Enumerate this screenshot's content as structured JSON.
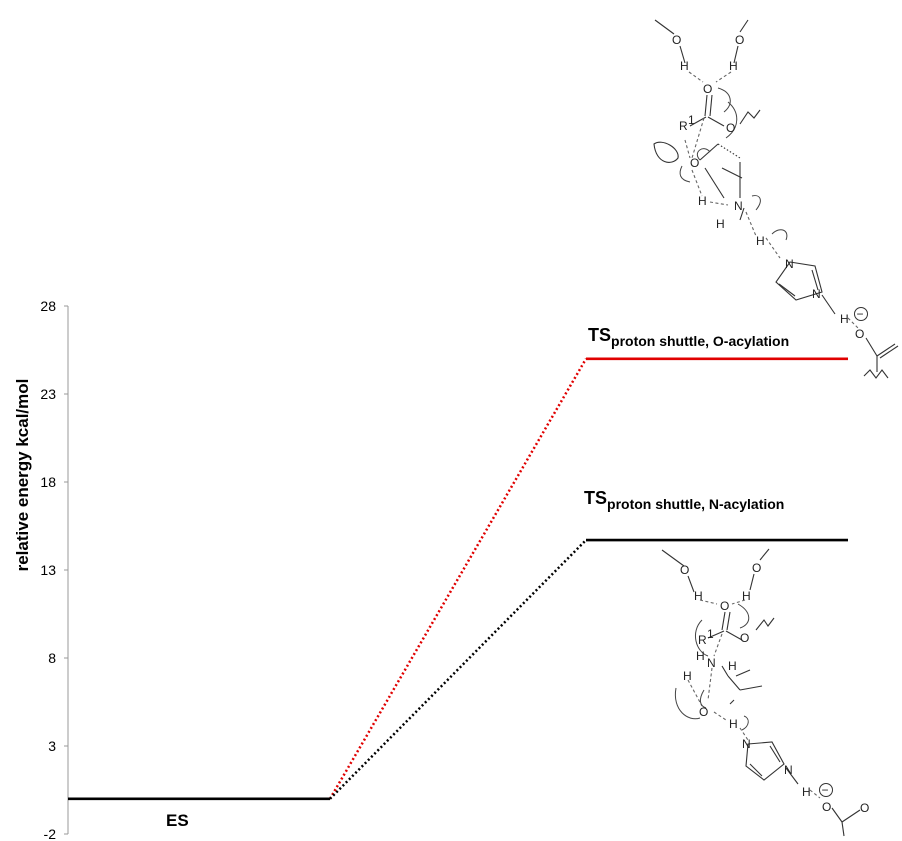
{
  "chart_data": {
    "type": "line",
    "title": "",
    "xlabel": "",
    "ylabel": "relative energy kcal/mol",
    "ylim": [
      -2,
      28
    ],
    "yticks": [
      28,
      23,
      18,
      13,
      8,
      3,
      -2
    ],
    "grid": false,
    "levels": [
      {
        "id": "es",
        "label": "ES",
        "value": 0,
        "color": "#000000"
      },
      {
        "id": "ts_o",
        "label": "TS",
        "subscript": "proton shuttle, O-acylation",
        "value": 25,
        "color": "#e00000"
      },
      {
        "id": "ts_n",
        "label": "TS",
        "subscript": "proton shuttle, N-acylation",
        "value": 14.7,
        "color": "#000000"
      }
    ],
    "connectors": [
      {
        "from": "es",
        "to": "ts_o",
        "style": "dotted",
        "color": "#e00000"
      },
      {
        "from": "es",
        "to": "ts_n",
        "style": "dotted",
        "color": "#000000"
      }
    ]
  },
  "structures": {
    "o_acylation": {
      "labels": [
        "O",
        "O",
        "H",
        "H",
        "O",
        "R",
        "1",
        "O",
        "O",
        "H",
        "H",
        "N",
        "H",
        "N",
        "N",
        "H",
        "O"
      ],
      "charge": "−",
      "icon": "lone-pair-orbital-icon"
    },
    "n_acylation": {
      "labels": [
        "O",
        "O",
        "H",
        "H",
        "O",
        "R",
        "1",
        "O",
        "N",
        "H",
        "H",
        "H",
        "O",
        "H",
        "N",
        "N",
        "H",
        "O",
        "O"
      ],
      "charge": "−"
    }
  }
}
